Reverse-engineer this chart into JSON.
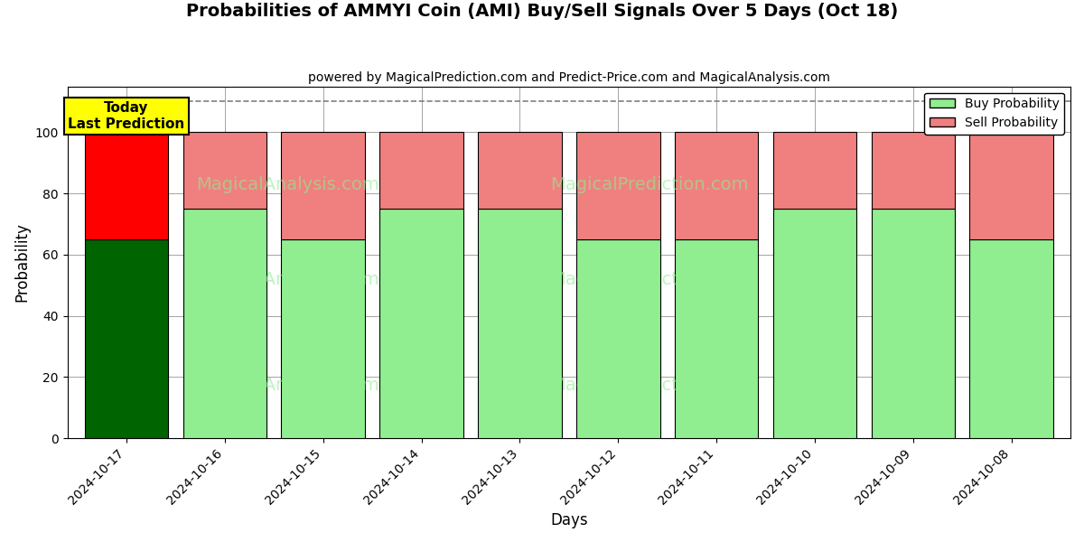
{
  "title": "Probabilities of AMMYI Coin (AMI) Buy/Sell Signals Over 5 Days (Oct 18)",
  "subtitle": "powered by MagicalPrediction.com and Predict-Price.com and MagicalAnalysis.com",
  "xlabel": "Days",
  "ylabel": "Probability",
  "dates": [
    "2024-10-17",
    "2024-10-16",
    "2024-10-15",
    "2024-10-14",
    "2024-10-13",
    "2024-10-12",
    "2024-10-11",
    "2024-10-10",
    "2024-10-09",
    "2024-10-08"
  ],
  "buy_values": [
    65,
    75,
    65,
    75,
    75,
    65,
    65,
    75,
    75,
    65
  ],
  "sell_values": [
    35,
    25,
    35,
    25,
    25,
    35,
    35,
    25,
    25,
    35
  ],
  "buy_colors": [
    "#006400",
    "#90EE90",
    "#90EE90",
    "#90EE90",
    "#90EE90",
    "#90EE90",
    "#90EE90",
    "#90EE90",
    "#90EE90",
    "#90EE90"
  ],
  "sell_colors": [
    "#FF0000",
    "#F08080",
    "#F08080",
    "#F08080",
    "#F08080",
    "#F08080",
    "#F08080",
    "#F08080",
    "#F08080",
    "#F08080"
  ],
  "today_label": "Today\nLast Prediction",
  "dashed_line_y": 110,
  "ylim": [
    0,
    115
  ],
  "yticks": [
    0,
    20,
    40,
    60,
    80,
    100
  ],
  "legend_buy_color": "#90EE90",
  "legend_sell_color": "#F08080",
  "background_color": "#ffffff",
  "bar_width": 0.85,
  "edgecolor": "#000000",
  "title_fontsize": 14,
  "subtitle_fontsize": 10,
  "xlabel_fontsize": 12,
  "ylabel_fontsize": 12,
  "tick_fontsize": 10
}
